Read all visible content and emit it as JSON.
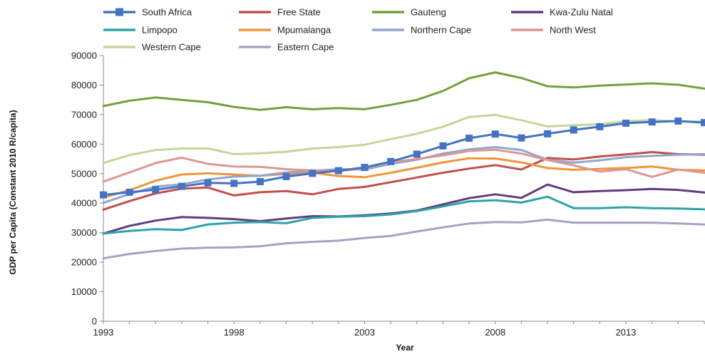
{
  "chart_data": {
    "type": "line",
    "xlabel": "Year",
    "ylabel": "GDP per Capita (Constant 2010 R/capita)",
    "xlim": [
      1993,
      2016
    ],
    "ylim": [
      0,
      90000
    ],
    "x_ticks": [
      1993,
      1998,
      2003,
      2008,
      2013
    ],
    "y_ticks": [
      0,
      10000,
      20000,
      30000,
      40000,
      50000,
      60000,
      70000,
      80000,
      90000
    ],
    "grid": false,
    "legend_position": "top",
    "x": [
      1993,
      1994,
      1995,
      1996,
      1997,
      1998,
      1999,
      2000,
      2001,
      2002,
      2003,
      2004,
      2005,
      2006,
      2007,
      2008,
      2009,
      2010,
      2011,
      2012,
      2013,
      2014,
      2015,
      2016
    ],
    "series": [
      {
        "name": "South Africa",
        "color": "#4472c4",
        "marker": "square",
        "values": [
          42800,
          43700,
          44600,
          45700,
          46900,
          46700,
          47300,
          49000,
          50100,
          51000,
          52100,
          54100,
          56600,
          59400,
          62000,
          63400,
          62100,
          63500,
          64800,
          65900,
          67100,
          67500,
          67800,
          67300
        ]
      },
      {
        "name": "Free State",
        "color": "#c0504d",
        "values": [
          37800,
          40700,
          43300,
          44900,
          45300,
          42600,
          43700,
          44100,
          43000,
          44800,
          45500,
          47100,
          48700,
          50300,
          51700,
          52900,
          51400,
          55300,
          54800,
          55800,
          56500,
          57300,
          56600,
          56400
        ]
      },
      {
        "name": "Gauteng",
        "color": "#77a03a",
        "values": [
          72900,
          74700,
          75800,
          75000,
          74200,
          72600,
          71600,
          72500,
          71800,
          72200,
          71800,
          73300,
          75000,
          78000,
          82300,
          84300,
          82400,
          79600,
          79200,
          79800,
          80200,
          80600,
          80100,
          78800
        ]
      },
      {
        "name": "Kwa-Zulu Natal",
        "color": "#5f3c7f",
        "values": [
          29700,
          32300,
          34100,
          35300,
          35000,
          34600,
          33900,
          34800,
          35600,
          35500,
          35900,
          36500,
          37500,
          39600,
          41700,
          43000,
          41800,
          46300,
          43700,
          44100,
          44400,
          44800,
          44500,
          43600
        ]
      },
      {
        "name": "Limpopo",
        "color": "#2ea3a6",
        "values": [
          29700,
          30600,
          31200,
          30900,
          32800,
          33400,
          33600,
          33200,
          35000,
          35400,
          35600,
          36200,
          37300,
          38900,
          40600,
          41000,
          40200,
          42200,
          38300,
          38300,
          38600,
          38300,
          38200,
          37900
        ]
      },
      {
        "name": "Mpumalanga",
        "color": "#f0953a",
        "values": [
          41900,
          44400,
          47600,
          49700,
          50100,
          49700,
          49300,
          49900,
          50300,
          49200,
          48800,
          50300,
          52000,
          53800,
          55200,
          55100,
          53800,
          51900,
          51300,
          51600,
          51900,
          52400,
          51300,
          51100
        ]
      },
      {
        "name": "Northern Cape",
        "color": "#8fa6cf",
        "values": [
          40100,
          43100,
          45600,
          46400,
          48000,
          49000,
          49300,
          50400,
          51000,
          51500,
          51400,
          53300,
          54700,
          56800,
          58200,
          59000,
          58000,
          54700,
          53700,
          54500,
          55600,
          56000,
          56400,
          56600
        ]
      },
      {
        "name": "North West",
        "color": "#de9693",
        "values": [
          47300,
          50400,
          53600,
          55400,
          53300,
          52400,
          52300,
          51500,
          51100,
          50800,
          51900,
          53800,
          55000,
          56200,
          57700,
          58100,
          56800,
          54600,
          52800,
          50700,
          51500,
          48900,
          51400,
          50300
        ]
      },
      {
        "name": "Western Cape",
        "color": "#c3d69b",
        "values": [
          53600,
          56300,
          58000,
          58500,
          58500,
          56600,
          56900,
          57400,
          58500,
          59000,
          59800,
          61700,
          63500,
          65900,
          69200,
          69900,
          68100,
          66000,
          66400,
          66700,
          67800,
          68100,
          67700,
          67600
        ]
      },
      {
        "name": "Eastern Cape",
        "color": "#a8a2c2",
        "values": [
          21300,
          22800,
          23800,
          24600,
          24900,
          25000,
          25400,
          26400,
          26900,
          27300,
          28200,
          28900,
          30400,
          31800,
          33100,
          33600,
          33500,
          34400,
          33400,
          33400,
          33400,
          33400,
          33100,
          32800
        ]
      }
    ]
  }
}
